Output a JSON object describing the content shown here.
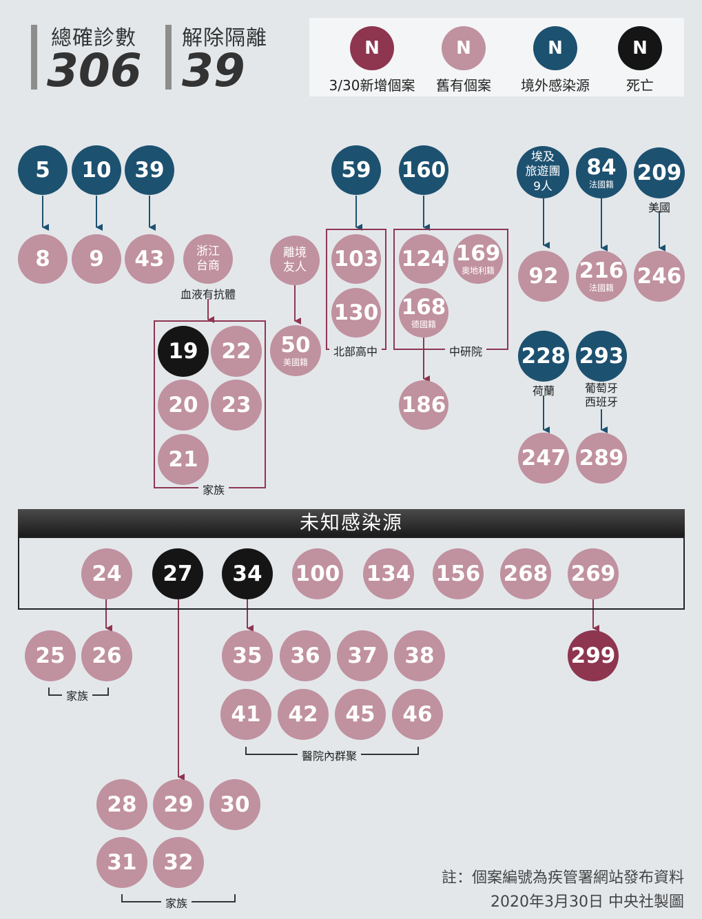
{
  "stats": {
    "confirmed_label": "總確診數",
    "confirmed_value": "306",
    "released_label": "解除隔離",
    "released_value": "39"
  },
  "legend": {
    "symbol": "N",
    "items": [
      {
        "label": "3/30新增個案",
        "color": "#8e3550"
      },
      {
        "label": "舊有個案",
        "color": "#c0919f"
      },
      {
        "label": "境外感染源",
        "color": "#1d5170"
      },
      {
        "label": "死亡",
        "color": "#151515"
      }
    ]
  },
  "cases": {
    "c5": "5",
    "c10": "10",
    "c39": "39",
    "c59": "59",
    "c160": "160",
    "c_egypt": "埃及\n旅遊團\n9人",
    "c84": "84",
    "c84_note": "法國籍",
    "c209": "209",
    "c209_note": "美國",
    "c8": "8",
    "c9": "9",
    "c43": "43",
    "c_zhejiang": "浙江\n台商",
    "c_friend": "離境\n友人",
    "c103": "103",
    "c130": "130",
    "c124": "124",
    "c169": "169",
    "c169_note": "奧地利籍",
    "c168": "168",
    "c168_note": "德國籍",
    "c186": "186",
    "c92": "92",
    "c216": "216",
    "c216_note": "法國籍",
    "c246": "246",
    "c19": "19",
    "c22": "22",
    "c20": "20",
    "c23": "23",
    "c21": "21",
    "c50": "50",
    "c50_note": "美國籍",
    "c228": "228",
    "c228_note": "荷蘭",
    "c293": "293",
    "c293_note": "葡萄牙\n西班牙",
    "c247": "247",
    "c289": "289",
    "c24": "24",
    "c27": "27",
    "c34": "34",
    "c100": "100",
    "c134": "134",
    "c156": "156",
    "c268": "268",
    "c269": "269",
    "c25": "25",
    "c26": "26",
    "c35": "35",
    "c36": "36",
    "c37": "37",
    "c38": "38",
    "c41": "41",
    "c42": "42",
    "c45": "45",
    "c46": "46",
    "c299": "299",
    "c28": "28",
    "c29": "29",
    "c30": "30",
    "c31": "31",
    "c32": "32"
  },
  "labels": {
    "blood_antibody": "血液有抗體",
    "family_a": "家族",
    "north_school": "北部高中",
    "academia": "中研院",
    "unknown_source": "未知感染源",
    "family_b": "家族",
    "hospital_cluster": "醫院內群聚",
    "family_c": "家族"
  },
  "footer": {
    "note": "註：個案編號為疾管署網站發布資料",
    "credit": "2020年3月30日  中央社製圖"
  }
}
